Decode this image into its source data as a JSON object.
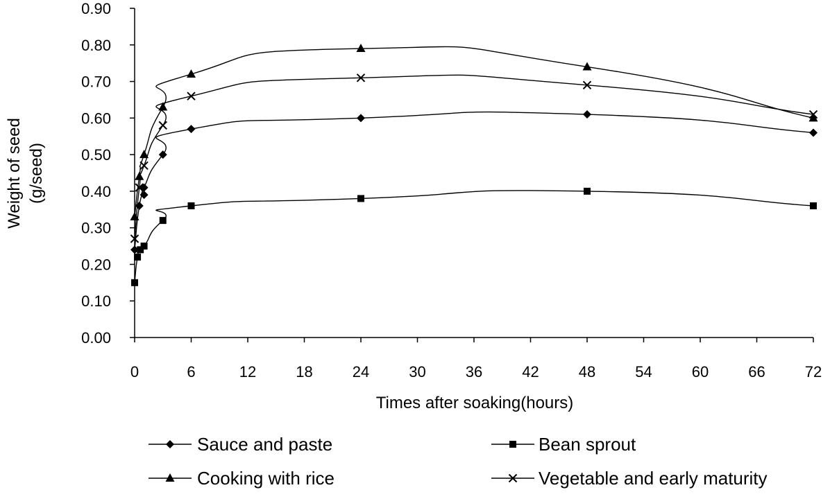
{
  "chart_data": {
    "type": "line",
    "xlabel": "Times after soaking(hours)",
    "ylabel_lines": [
      "Weight of seed",
      "(g/seed)"
    ],
    "xlim": [
      0,
      72
    ],
    "ylim": [
      0,
      0.9
    ],
    "x_ticks": [
      "0",
      "6",
      "12",
      "18",
      "24",
      "30",
      "36",
      "42",
      "48",
      "54",
      "60",
      "66",
      "72"
    ],
    "y_ticks": [
      "0.00",
      "0.10",
      "0.20",
      "0.30",
      "0.40",
      "0.50",
      "0.60",
      "0.70",
      "0.80",
      "0.90"
    ],
    "grid": false,
    "legend_position": "bottom",
    "series": [
      {
        "name": "Sauce and paste",
        "marker": "diamond",
        "color": "#000000",
        "x": [
          0,
          0.5,
          1,
          1,
          3,
          6,
          24,
          48,
          72
        ],
        "y": [
          0.24,
          0.36,
          0.39,
          0.41,
          0.5,
          0.57,
          0.6,
          0.61,
          0.56
        ]
      },
      {
        "name": "Bean sprout",
        "marker": "square",
        "color": "#000000",
        "x": [
          0,
          0.3,
          0.6,
          1,
          3,
          6,
          24,
          48,
          72
        ],
        "y": [
          0.15,
          0.22,
          0.24,
          0.25,
          0.32,
          0.36,
          0.38,
          0.4,
          0.36
        ]
      },
      {
        "name": "Cooking with rice",
        "marker": "triangle",
        "color": "#000000",
        "x": [
          0,
          0.5,
          1,
          3,
          6,
          24,
          48,
          72
        ],
        "y": [
          0.33,
          0.44,
          0.5,
          0.63,
          0.72,
          0.79,
          0.74,
          0.6
        ]
      },
      {
        "name": "Vegetable and early maturity",
        "marker": "x",
        "color": "#000000",
        "x": [
          0,
          0.5,
          1,
          3,
          6,
          24,
          48,
          72
        ],
        "y": [
          0.27,
          0.41,
          0.47,
          0.58,
          0.66,
          0.71,
          0.69,
          0.61
        ]
      }
    ]
  }
}
